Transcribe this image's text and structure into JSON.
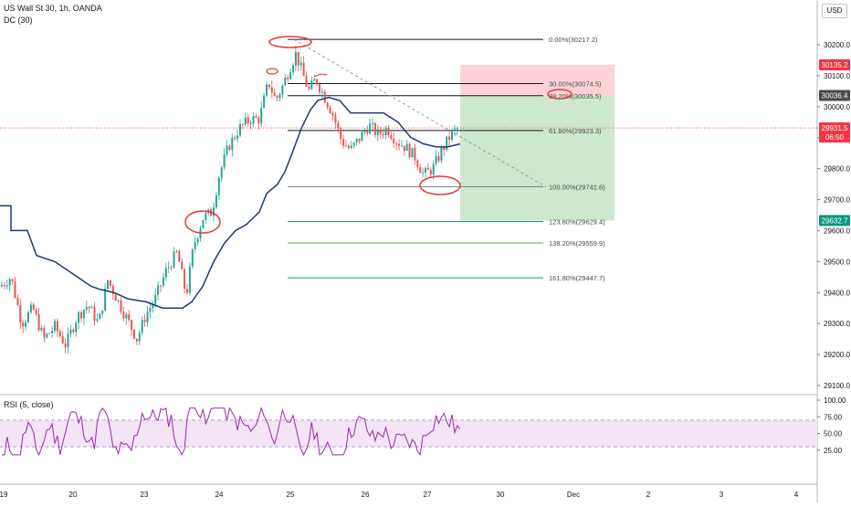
{
  "header": {
    "symbol": "US Wall St 30, 1h, OANDA",
    "indicator": "DC (30)",
    "currency": "USD"
  },
  "rsi": {
    "label": "RSI (5, close)",
    "ticks": [
      "100.00",
      "75.00",
      "50.00",
      "25.00"
    ],
    "upper_band": 70,
    "lower_band": 30,
    "color": "#9c27b0"
  },
  "chart_data": {
    "type": "candlestick",
    "price_range": [
      29070,
      30290
    ],
    "price_ticks": [
      29100,
      29200,
      29300,
      29400,
      29500,
      29600,
      29700,
      29800,
      29900,
      30000,
      30100,
      30200
    ],
    "price_tick_labels": [
      "29100.0",
      "29200.0",
      "29300.0",
      "29400.0",
      "29500.0",
      "29600.0",
      "29700.0",
      "29800.0",
      "29900.0",
      "30000.0",
      "30100.0",
      "30200.0"
    ],
    "x_axis_labels": [
      "19",
      "20",
      "23",
      "24",
      "25",
      "26",
      "27",
      "30",
      "Dec",
      "2",
      "3",
      "4"
    ],
    "price_labels": [
      {
        "text": "30135.2",
        "value": 30135.2,
        "color": "#f23645"
      },
      {
        "text": "30036.4",
        "value": 30036.4,
        "color": "#4a4a4a"
      },
      {
        "text": "29931.5",
        "value": 29931.5,
        "color": "#f23645"
      },
      {
        "text": "06:50",
        "value": 29902,
        "color": "#f23645"
      },
      {
        "text": "29632.7",
        "value": 29632.7,
        "color": "#089981"
      }
    ],
    "fibonacci": [
      {
        "label": "0.00%(30217.2)",
        "value": 30217.2,
        "color": "#131722"
      },
      {
        "label": "30.00%(30074.5)",
        "value": 30074.5,
        "color": "#131722"
      },
      {
        "label": "38.20%(30035.5)",
        "value": 30035.5,
        "color": "#131722"
      },
      {
        "label": "61.80%(29923.3)",
        "value": 29923.3,
        "color": "#131722"
      },
      {
        "label": "100.00%(29741.6)",
        "value": 29741.6,
        "color": "#787b86"
      },
      {
        "label": "123.60%(29629.4)",
        "value": 29629.4,
        "color": "#089981"
      },
      {
        "label": "138.20%(29559.9)",
        "value": 29559.9,
        "color": "#4caf50"
      },
      {
        "label": "161.80%(29447.7)",
        "value": 29447.7,
        "color": "#089981"
      }
    ],
    "position": {
      "entry": 30036.4,
      "stop": 30135.2,
      "target": 29632.7,
      "stop_color": "#ffcdd2",
      "target_color": "#c8e6c9"
    },
    "colors": {
      "up": "#26a69a",
      "down": "#ef5350",
      "channel": "#1e3a6e",
      "annotation": "#e53935"
    }
  }
}
